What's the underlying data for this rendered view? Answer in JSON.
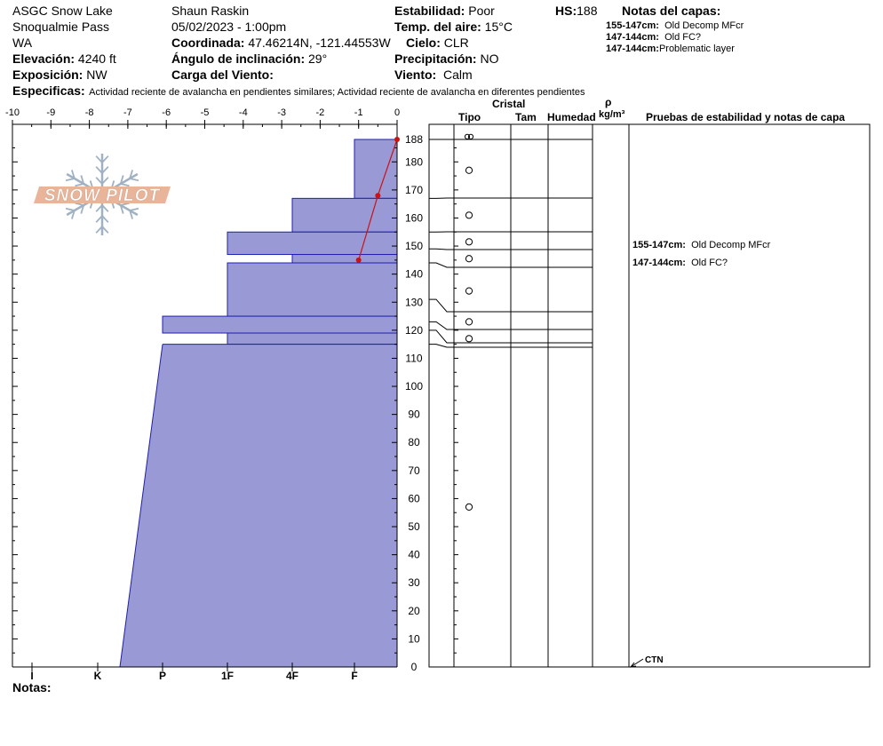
{
  "header": {
    "location": "ASGC Snow Lake",
    "area": "Snoqualmie Pass",
    "state": "WA",
    "elevation_label": "Elevación:",
    "elevation": "4240 ft",
    "aspect_label": "Exposición:",
    "aspect": "NW",
    "observer": "Shaun Raskin",
    "datetime": "05/02/2023 - 1:00pm",
    "coord_label": "Coordinada:",
    "coord": "47.46214N, -121.44553W",
    "slope_label": "Ángulo de inclinación:",
    "slope": "29°",
    "windload_label": "Carga del Viento:",
    "windload": "",
    "stability_label": "Estabilidad:",
    "stability": "Poor",
    "airtemp_label": "Temp. del aire:",
    "airtemp": "15°C",
    "sky_label": "Cielo:",
    "sky": "CLR",
    "precip_label": "Precipitación:",
    "precip": "NO",
    "wind_label": "Viento:",
    "wind": "Calm",
    "hs_label": "HS:",
    "hs": "188",
    "specifics_label": "Especificas:",
    "specifics": "Actividad reciente de avalancha en pendientes similares; Actividad reciente de avalancha en diferentes pendientes",
    "notas_label": "Notas:"
  },
  "layer_notes": {
    "title": "Notas del capas:",
    "items": [
      {
        "range": "155-147cm:",
        "note": "Old Decomp MFcr"
      },
      {
        "range": "147-144cm:",
        "note": "Old FC?"
      },
      {
        "range": "147-144cm:",
        "note": "Problematic layer"
      }
    ]
  },
  "table_headers": {
    "cristal": "Cristal",
    "tipo": "Tipo",
    "tam": "Tam",
    "humedad": "Humedad",
    "rho": "ρ",
    "density_unit": "kg/m³",
    "tests": "Pruebas de estabilidad y notas de capa"
  },
  "side_notes": [
    {
      "depth": 151,
      "range": "155-147cm:",
      "note": "Old Decomp MFcr"
    },
    {
      "depth": 145,
      "range": "147-144cm:",
      "note": "Old FC?"
    }
  ],
  "test_result": {
    "depth": 0,
    "label": "CTN"
  },
  "logo": {
    "text": "SNOW PILOT"
  },
  "chart_data": {
    "type": "snow-profile",
    "title": "",
    "top_axis": {
      "label": "",
      "min": -10,
      "max": 0,
      "ticks": [
        -10,
        -9,
        -8,
        -7,
        -6,
        -5,
        -4,
        -3,
        -2,
        -1,
        0
      ],
      "unit": "°C"
    },
    "depth_axis": {
      "min": 0,
      "max": 188,
      "ticks": [
        0,
        10,
        20,
        30,
        40,
        50,
        60,
        70,
        80,
        90,
        100,
        110,
        120,
        130,
        140,
        150,
        160,
        170,
        180,
        188
      ],
      "unit": "cm"
    },
    "hardness_axis": {
      "labels": [
        "I",
        "K",
        "P",
        "1F",
        "4F",
        "F"
      ]
    },
    "hardness_layers": [
      {
        "top": 188,
        "bottom": 167,
        "hardness": "F"
      },
      {
        "top": 167,
        "bottom": 155,
        "hardness": "4F"
      },
      {
        "top": 155,
        "bottom": 147,
        "hardness": "1F"
      },
      {
        "top": 147,
        "bottom": 144,
        "hardness": "4F"
      },
      {
        "top": 144,
        "bottom": 125,
        "hardness": "1F"
      },
      {
        "top": 125,
        "bottom": 119,
        "hardness": "P"
      },
      {
        "top": 119,
        "bottom": 115,
        "hardness": "1F"
      },
      {
        "top": 115,
        "bottom": 0,
        "hardness_top": "P",
        "hardness_bottom": "K+"
      }
    ],
    "temperature_profile": [
      {
        "depth": 188,
        "temp": 0
      },
      {
        "depth": 168,
        "temp": -0.5
      },
      {
        "depth": 145,
        "temp": -1
      }
    ],
    "layer_boundaries": [
      188,
      167,
      155,
      149,
      144,
      131,
      123,
      120,
      115,
      0
    ],
    "crystal_symbols": [
      {
        "depth": 189,
        "type": "melt-forms"
      },
      {
        "depth": 177,
        "type": "rounded"
      },
      {
        "depth": 161,
        "type": "rounded"
      },
      {
        "depth": 151.5,
        "type": "rounded"
      },
      {
        "depth": 145.5,
        "type": "rounded"
      },
      {
        "depth": 134,
        "type": "rounded"
      },
      {
        "depth": 123,
        "type": "rounded"
      },
      {
        "depth": 117,
        "type": "rounded"
      },
      {
        "depth": 57,
        "type": "rounded"
      }
    ],
    "colors": {
      "hardness_fill": "#9999d6",
      "hardness_stroke": "#1f1fb0",
      "temperature": "#cc1111"
    },
    "grid": false
  }
}
